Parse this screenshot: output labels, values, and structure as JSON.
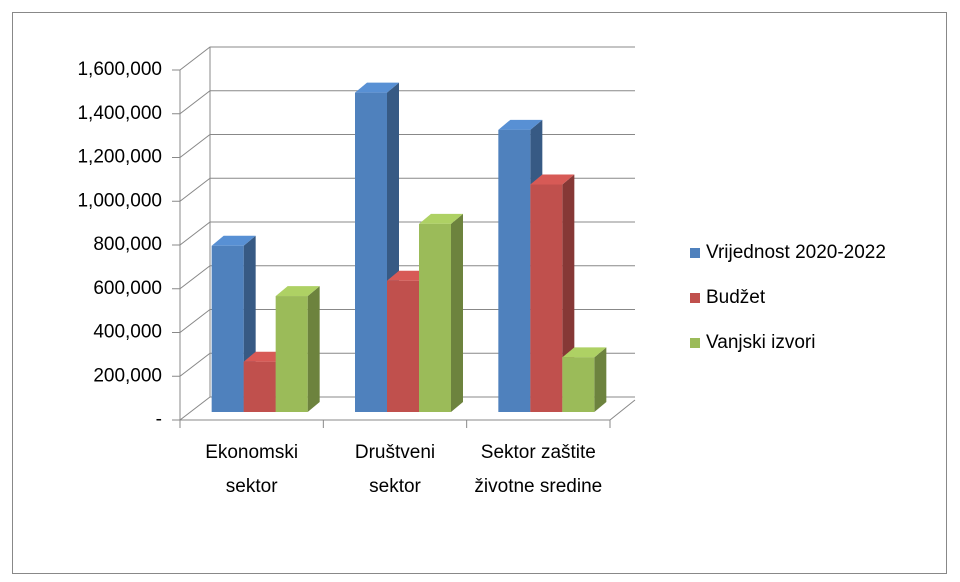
{
  "chart_data": {
    "type": "bar3d",
    "categories": [
      "Ekonomski sektor",
      "Društveni sektor",
      "Sektor zaštite životne sredine"
    ],
    "series": [
      {
        "name": "Vrijednost 2020-2022",
        "color": "#4f81bd",
        "values": [
          760000,
          1460000,
          1290000
        ]
      },
      {
        "name": "Budžet",
        "color": "#c0504d",
        "values": [
          230000,
          600000,
          1040000
        ]
      },
      {
        "name": "Vanjski izvori",
        "color": "#9bbb59",
        "values": [
          530000,
          860000,
          250000
        ]
      }
    ],
    "ylim": [
      0,
      1600000
    ],
    "yticks": [
      {
        "value": 0,
        "label": "-"
      },
      {
        "value": 200000,
        "label": "200,000"
      },
      {
        "value": 400000,
        "label": "400,000"
      },
      {
        "value": 600000,
        "label": "600,000"
      },
      {
        "value": 800000,
        "label": "800,000"
      },
      {
        "value": 1000000,
        "label": "1,000,000"
      },
      {
        "value": 1200000,
        "label": "1,200,000"
      },
      {
        "value": 1400000,
        "label": "1,400,000"
      },
      {
        "value": 1600000,
        "label": "1,600,000"
      }
    ],
    "grid": true,
    "legend": "right"
  }
}
